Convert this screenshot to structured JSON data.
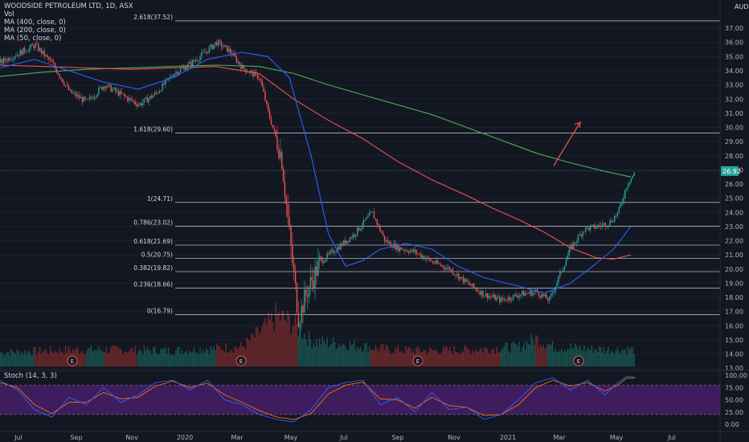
{
  "header": {
    "title": "WOODSIDE PETROLEUM LTD, 1D, ASX",
    "vol_label": "Vol",
    "ma1_label": "MA (400, close, 0)",
    "ma2_label": "MA (200, close, 0)",
    "ma3_label": "MA (50, close, 0)",
    "currency": "AUD"
  },
  "stoch": {
    "label": "Stoch (14, 3, 3)",
    "y_ticks": [
      "100.00",
      "75.00",
      "50.00",
      "25.00",
      "0.00"
    ],
    "upper_band": 80,
    "lower_band": 20
  },
  "colors": {
    "background": "#131722",
    "up": "#26a69a",
    "down": "#ef5350",
    "ma50": "#2962ff",
    "ma200": "#ef5350",
    "ma400": "#4caf50",
    "fib": "#b2b5be",
    "stoch_fill": "#4a1f6e",
    "stoch_k": "#2962ff",
    "stoch_d": "#ff6d00",
    "arrow": "#ef5350"
  },
  "chart_data": {
    "type": "candlestick",
    "y_ticks": [
      "37.00",
      "36.00",
      "35.00",
      "34.00",
      "33.00",
      "32.00",
      "31.00",
      "30.00",
      "29.00",
      "28.00",
      "27.00",
      "26.00",
      "25.00",
      "24.00",
      "23.00",
      "22.00",
      "21.00",
      "20.00",
      "19.00",
      "18.00",
      "17.00",
      "16.00",
      "15.00",
      "14.00",
      "13.00"
    ],
    "x_ticks": [
      "Jul",
      "Sep",
      "Nov",
      "2020",
      "Mar",
      "May",
      "Jul",
      "Sep",
      "Nov",
      "2021",
      "Mar",
      "May",
      "Jul"
    ],
    "current_price": "26.92",
    "ylim": [
      13,
      37.5
    ],
    "fib_levels": [
      {
        "label": "2.618(37.52)",
        "value": 37.52
      },
      {
        "label": "1.618(29.60)",
        "value": 29.6
      },
      {
        "label": "1(24.71)",
        "value": 24.71
      },
      {
        "label": "0.786(23.02)",
        "value": 23.02
      },
      {
        "label": "0.618(21.69)",
        "value": 21.69
      },
      {
        "label": "0.5(20.75)",
        "value": 20.75
      },
      {
        "label": "0.382(19.82)",
        "value": 19.82
      },
      {
        "label": "0.236(18.66)",
        "value": 18.66
      },
      {
        "label": "0(16.79)",
        "value": 16.79
      }
    ],
    "earnings_markers": [
      {
        "label": "E",
        "x": 0.09
      },
      {
        "label": "E",
        "x": 0.3
      },
      {
        "label": "E",
        "x": 0.52
      },
      {
        "label": "E",
        "x": 0.72
      }
    ],
    "price_path": [
      [
        0,
        34.6
      ],
      [
        0.02,
        35.2
      ],
      [
        0.04,
        35.8
      ],
      [
        0.06,
        34.5
      ],
      [
        0.08,
        32.5
      ],
      [
        0.1,
        31.8
      ],
      [
        0.12,
        33.0
      ],
      [
        0.14,
        32.3
      ],
      [
        0.16,
        31.6
      ],
      [
        0.18,
        32.4
      ],
      [
        0.2,
        33.8
      ],
      [
        0.22,
        34.5
      ],
      [
        0.235,
        35.2
      ],
      [
        0.25,
        36.0
      ],
      [
        0.265,
        35.4
      ],
      [
        0.28,
        34.2
      ],
      [
        0.3,
        33.5
      ],
      [
        0.31,
        31.0
      ],
      [
        0.325,
        28.0
      ],
      [
        0.335,
        22.0
      ],
      [
        0.345,
        16.5
      ],
      [
        0.355,
        18.5
      ],
      [
        0.37,
        20.5
      ],
      [
        0.39,
        21.5
      ],
      [
        0.41,
        22.5
      ],
      [
        0.43,
        24.0
      ],
      [
        0.445,
        22.0
      ],
      [
        0.46,
        21.5
      ],
      [
        0.48,
        21.2
      ],
      [
        0.5,
        20.5
      ],
      [
        0.52,
        20.0
      ],
      [
        0.54,
        19.0
      ],
      [
        0.56,
        18.2
      ],
      [
        0.58,
        17.8
      ],
      [
        0.6,
        18.2
      ],
      [
        0.62,
        18.4
      ],
      [
        0.635,
        17.8
      ],
      [
        0.65,
        20.0
      ],
      [
        0.66,
        21.5
      ],
      [
        0.675,
        22.8
      ],
      [
        0.69,
        23.0
      ],
      [
        0.705,
        23.3
      ],
      [
        0.715,
        24.0
      ],
      [
        0.725,
        26.0
      ],
      [
        0.735,
        26.9
      ]
    ],
    "ma50": [
      [
        0,
        34.2
      ],
      [
        0.04,
        34.8
      ],
      [
        0.08,
        34.0
      ],
      [
        0.12,
        33.2
      ],
      [
        0.16,
        32.7
      ],
      [
        0.2,
        33.5
      ],
      [
        0.24,
        34.8
      ],
      [
        0.28,
        35.3
      ],
      [
        0.31,
        35.0
      ],
      [
        0.335,
        33.5
      ],
      [
        0.36,
        28.0
      ],
      [
        0.38,
        22.5
      ],
      [
        0.4,
        20.2
      ],
      [
        0.42,
        20.6
      ],
      [
        0.44,
        21.4
      ],
      [
        0.47,
        21.8
      ],
      [
        0.5,
        21.4
      ],
      [
        0.53,
        20.2
      ],
      [
        0.56,
        19.4
      ],
      [
        0.6,
        18.8
      ],
      [
        0.63,
        18.3
      ],
      [
        0.66,
        19.0
      ],
      [
        0.69,
        20.4
      ],
      [
        0.71,
        21.4
      ],
      [
        0.73,
        23.0
      ]
    ],
    "ma200": [
      [
        0,
        34.4
      ],
      [
        0.05,
        34.3
      ],
      [
        0.1,
        34.2
      ],
      [
        0.15,
        34.1
      ],
      [
        0.2,
        34.2
      ],
      [
        0.25,
        34.3
      ],
      [
        0.3,
        33.8
      ],
      [
        0.34,
        32.0
      ],
      [
        0.38,
        30.5
      ],
      [
        0.42,
        29.2
      ],
      [
        0.46,
        27.6
      ],
      [
        0.5,
        26.3
      ],
      [
        0.54,
        25.2
      ],
      [
        0.57,
        24.3
      ],
      [
        0.6,
        23.5
      ],
      [
        0.63,
        22.6
      ],
      [
        0.66,
        21.5
      ],
      [
        0.69,
        20.8
      ],
      [
        0.71,
        20.7
      ],
      [
        0.73,
        21.0
      ]
    ],
    "ma400": [
      [
        0,
        33.6
      ],
      [
        0.05,
        33.9
      ],
      [
        0.1,
        34.1
      ],
      [
        0.15,
        34.2
      ],
      [
        0.2,
        34.3
      ],
      [
        0.25,
        34.4
      ],
      [
        0.3,
        34.3
      ],
      [
        0.34,
        33.8
      ],
      [
        0.38,
        33.0
      ],
      [
        0.42,
        32.3
      ],
      [
        0.46,
        31.6
      ],
      [
        0.5,
        30.9
      ],
      [
        0.54,
        30.0
      ],
      [
        0.58,
        29.1
      ],
      [
        0.62,
        28.2
      ],
      [
        0.66,
        27.5
      ],
      [
        0.7,
        26.9
      ],
      [
        0.73,
        26.5
      ]
    ],
    "stoch_k": [
      [
        0,
        90
      ],
      [
        0.02,
        70
      ],
      [
        0.04,
        30
      ],
      [
        0.06,
        15
      ],
      [
        0.08,
        55
      ],
      [
        0.1,
        40
      ],
      [
        0.12,
        75
      ],
      [
        0.14,
        45
      ],
      [
        0.16,
        60
      ],
      [
        0.18,
        85
      ],
      [
        0.2,
        90
      ],
      [
        0.22,
        70
      ],
      [
        0.24,
        90
      ],
      [
        0.26,
        50
      ],
      [
        0.28,
        40
      ],
      [
        0.3,
        20
      ],
      [
        0.32,
        10
      ],
      [
        0.34,
        5
      ],
      [
        0.36,
        30
      ],
      [
        0.38,
        75
      ],
      [
        0.4,
        85
      ],
      [
        0.42,
        90
      ],
      [
        0.44,
        40
      ],
      [
        0.46,
        55
      ],
      [
        0.48,
        25
      ],
      [
        0.5,
        65
      ],
      [
        0.52,
        30
      ],
      [
        0.54,
        35
      ],
      [
        0.56,
        10
      ],
      [
        0.58,
        20
      ],
      [
        0.6,
        50
      ],
      [
        0.62,
        85
      ],
      [
        0.64,
        95
      ],
      [
        0.66,
        70
      ],
      [
        0.68,
        90
      ],
      [
        0.7,
        60
      ],
      [
        0.715,
        85
      ],
      [
        0.725,
        98
      ],
      [
        0.735,
        96
      ]
    ],
    "stoch_d": [
      [
        0,
        85
      ],
      [
        0.02,
        75
      ],
      [
        0.04,
        40
      ],
      [
        0.06,
        22
      ],
      [
        0.08,
        45
      ],
      [
        0.1,
        45
      ],
      [
        0.12,
        65
      ],
      [
        0.14,
        52
      ],
      [
        0.16,
        55
      ],
      [
        0.18,
        78
      ],
      [
        0.2,
        88
      ],
      [
        0.22,
        75
      ],
      [
        0.24,
        84
      ],
      [
        0.26,
        60
      ],
      [
        0.28,
        45
      ],
      [
        0.3,
        28
      ],
      [
        0.32,
        15
      ],
      [
        0.34,
        10
      ],
      [
        0.36,
        22
      ],
      [
        0.38,
        62
      ],
      [
        0.4,
        80
      ],
      [
        0.42,
        86
      ],
      [
        0.44,
        52
      ],
      [
        0.46,
        50
      ],
      [
        0.48,
        33
      ],
      [
        0.5,
        55
      ],
      [
        0.52,
        38
      ],
      [
        0.54,
        35
      ],
      [
        0.56,
        18
      ],
      [
        0.58,
        20
      ],
      [
        0.6,
        40
      ],
      [
        0.62,
        75
      ],
      [
        0.64,
        90
      ],
      [
        0.66,
        78
      ],
      [
        0.68,
        85
      ],
      [
        0.7,
        68
      ],
      [
        0.715,
        80
      ],
      [
        0.725,
        94
      ],
      [
        0.735,
        95
      ]
    ],
    "volume_envelope": [
      [
        0,
        0.25
      ],
      [
        0.1,
        0.3
      ],
      [
        0.2,
        0.28
      ],
      [
        0.28,
        0.35
      ],
      [
        0.3,
        0.6
      ],
      [
        0.32,
        0.9
      ],
      [
        0.34,
        0.75
      ],
      [
        0.36,
        0.45
      ],
      [
        0.4,
        0.4
      ],
      [
        0.45,
        0.3
      ],
      [
        0.5,
        0.28
      ],
      [
        0.55,
        0.3
      ],
      [
        0.6,
        0.35
      ],
      [
        0.62,
        0.5
      ],
      [
        0.64,
        0.35
      ],
      [
        0.7,
        0.3
      ],
      [
        0.735,
        0.3
      ]
    ]
  }
}
